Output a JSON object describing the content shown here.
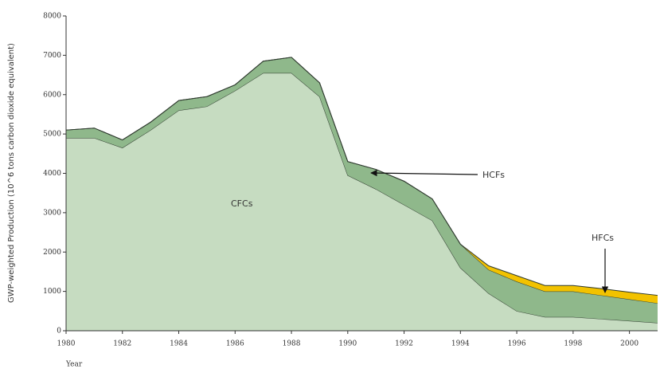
{
  "chart_data": {
    "type": "stacked_area",
    "x": [
      1980,
      1981,
      1982,
      1983,
      1984,
      1985,
      1986,
      1987,
      1988,
      1989,
      1990,
      1991,
      1992,
      1993,
      1994,
      1995,
      1996,
      1997,
      1998,
      1999,
      2000,
      2001
    ],
    "series": [
      {
        "name": "CFCs",
        "color": "#c6dcc1",
        "values": [
          4900,
          4900,
          4650,
          5100,
          5600,
          5700,
          6100,
          6550,
          6550,
          5950,
          3950,
          3600,
          3200,
          2800,
          1600,
          950,
          500,
          350,
          350,
          300,
          250,
          200
        ]
      },
      {
        "name": "HCFs",
        "color": "#8fb88b",
        "values": [
          200,
          250,
          200,
          200,
          250,
          250,
          150,
          300,
          400,
          350,
          350,
          500,
          600,
          550,
          600,
          600,
          750,
          650,
          650,
          600,
          550,
          500
        ]
      },
      {
        "name": "HFCs",
        "color": "#f2c200",
        "values": [
          0,
          0,
          0,
          0,
          0,
          0,
          0,
          0,
          0,
          0,
          0,
          0,
          0,
          0,
          0,
          100,
          150,
          150,
          150,
          170,
          180,
          200
        ]
      }
    ],
    "xlabel": "Year",
    "ylabel": "GWP-weighted Production (10^6 tons carbon dioxide equivalent)",
    "xlim": [
      1980,
      2001
    ],
    "xticks": [
      1980,
      1982,
      1984,
      1986,
      1988,
      1990,
      1992,
      1994,
      1996,
      1998,
      2000
    ],
    "ylim": [
      0,
      8000
    ],
    "yticks": [
      0,
      1000,
      2000,
      3000,
      4000,
      5000,
      6000,
      7000,
      8000
    ]
  }
}
